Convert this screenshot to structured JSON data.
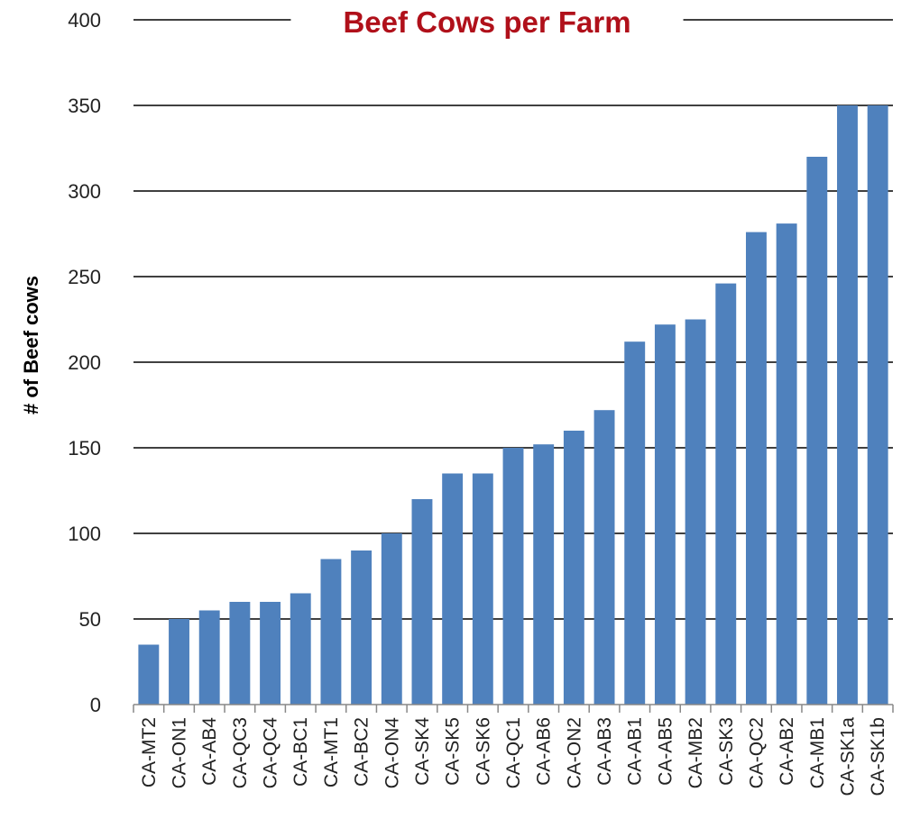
{
  "chart_data": {
    "type": "bar",
    "title": "Beef Cows per Farm",
    "xlabel": "",
    "ylabel": "# of Beef cows",
    "ylim": [
      0,
      400
    ],
    "yticks": [
      0,
      50,
      100,
      150,
      200,
      250,
      300,
      350,
      400
    ],
    "grid": true,
    "legend": "none",
    "colors": {
      "bar": "#4f81bd",
      "title": "#b0101a",
      "grid": "#000000"
    },
    "categories": [
      "CA-MT2",
      "CA-ON1",
      "CA-AB4",
      "CA-QC3",
      "CA-QC4",
      "CA-BC1",
      "CA-MT1",
      "CA-BC2",
      "CA-ON4",
      "CA-SK4",
      "CA-SK5",
      "CA-SK6",
      "CA-QC1",
      "CA-AB6",
      "CA-ON2",
      "CA-AB3",
      "CA-AB1",
      "CA-AB5",
      "CA-MB2",
      "CA-SK3",
      "CA-QC2",
      "CA-AB2",
      "CA-MB1",
      "CA-SK1a",
      "CA-SK1b"
    ],
    "values": [
      35,
      50,
      55,
      60,
      60,
      65,
      85,
      90,
      100,
      120,
      135,
      135,
      150,
      152,
      160,
      172,
      212,
      222,
      225,
      246,
      276,
      281,
      320,
      350,
      350
    ]
  }
}
